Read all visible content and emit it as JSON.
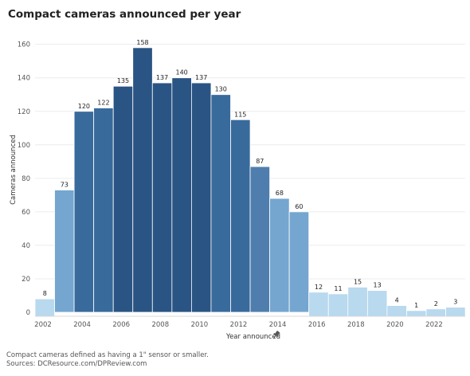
{
  "title": "Compact cameras announced per year",
  "footnotes": [
    "Compact cameras defined as having a 1\" sensor or smaller.",
    "Sources: DCResource.com/DPReview.com"
  ],
  "chart_data": {
    "type": "bar",
    "title": "Compact cameras announced per year",
    "xlabel": "Year announced",
    "xlabel_icon": "pin-icon",
    "ylabel": "Cameras announced",
    "ylim": [
      0,
      168
    ],
    "yticks": [
      0,
      20,
      40,
      60,
      80,
      100,
      120,
      140,
      160
    ],
    "xticks": [
      2002,
      2004,
      2006,
      2008,
      2010,
      2012,
      2014,
      2016,
      2018,
      2020,
      2022
    ],
    "grid": true,
    "categories": [
      2002,
      2003,
      2004,
      2005,
      2006,
      2007,
      2008,
      2009,
      2010,
      2011,
      2012,
      2013,
      2014,
      2015,
      2016,
      2017,
      2018,
      2019,
      2020,
      2021,
      2022,
      2023
    ],
    "values": [
      8,
      73,
      120,
      122,
      135,
      158,
      137,
      140,
      137,
      130,
      115,
      87,
      68,
      60,
      12,
      11,
      15,
      13,
      4,
      1,
      2,
      3
    ],
    "colors": {
      "darkest": "#2a5483",
      "dark": "#396a9c",
      "mid": "#4f7eae",
      "light": "#74a6cf",
      "lightest": "#b8d9ee"
    }
  }
}
